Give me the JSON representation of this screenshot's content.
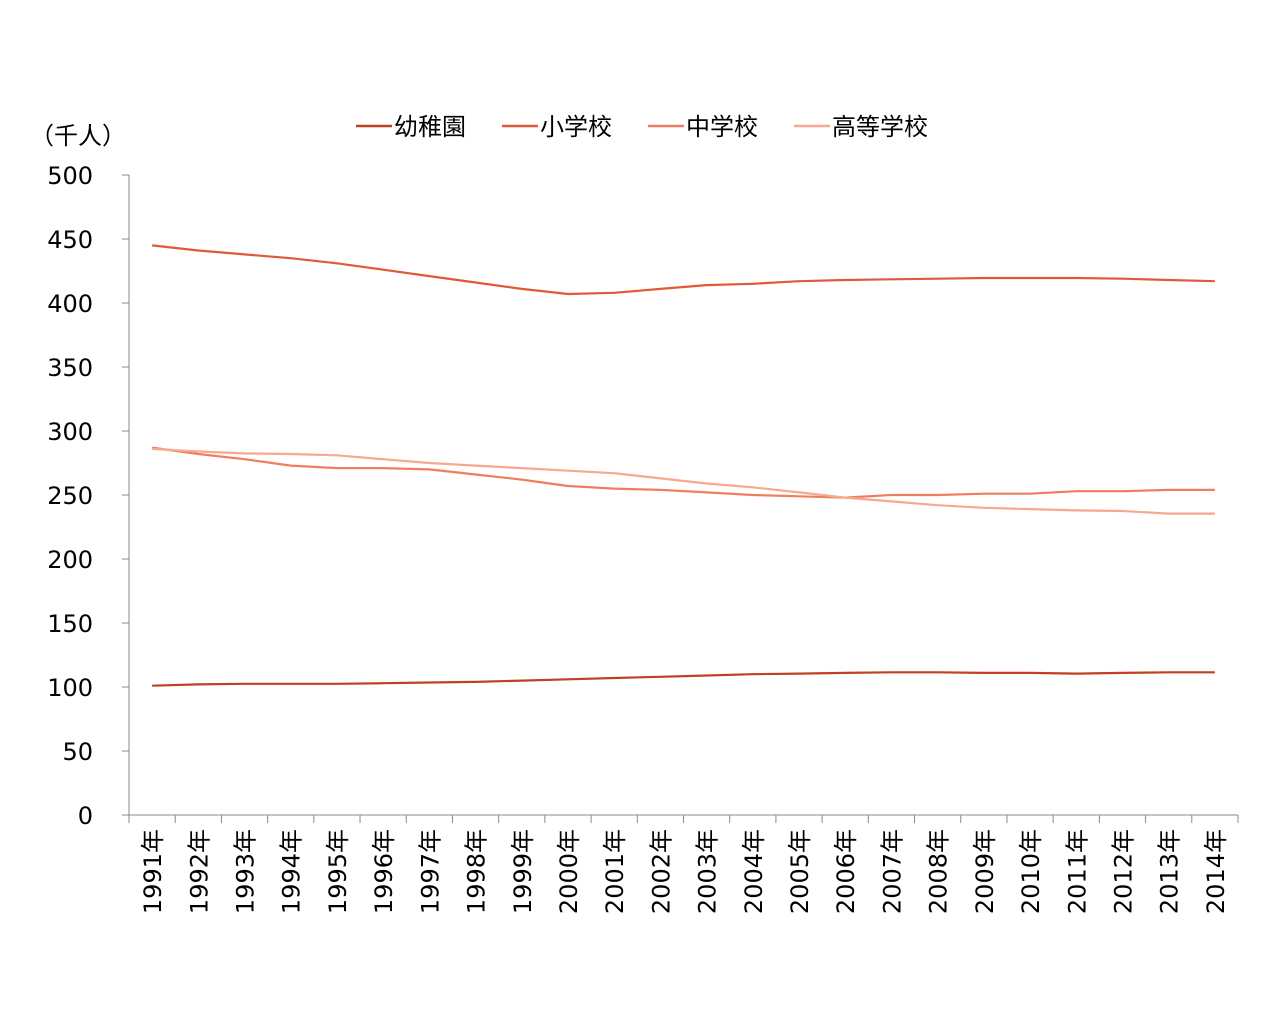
{
  "chart_data": {
    "type": "line",
    "unit_label": "（千人）",
    "categories": [
      "1991年",
      "1992年",
      "1993年",
      "1994年",
      "1995年",
      "1996年",
      "1997年",
      "1998年",
      "1999年",
      "2000年",
      "2001年",
      "2002年",
      "2003年",
      "2004年",
      "2005年",
      "2006年",
      "2007年",
      "2008年",
      "2009年",
      "2010年",
      "2011年",
      "2012年",
      "2013年",
      "2014年"
    ],
    "ylim": [
      0,
      500
    ],
    "yticks": [
      0,
      50,
      100,
      150,
      200,
      250,
      300,
      350,
      400,
      450,
      500
    ],
    "grid": false,
    "legend_position": "top",
    "series": [
      {
        "name": "幼稚園",
        "color": "#c0401f",
        "values": [
          101,
          102,
          102.5,
          102.5,
          102.5,
          103,
          103.5,
          104,
          105,
          106,
          107,
          108,
          109,
          110,
          110.5,
          111,
          111.5,
          111.5,
          111,
          111,
          110.5,
          111,
          111.5,
          111.5
        ]
      },
      {
        "name": "小学校",
        "color": "#e05a3a",
        "values": [
          445,
          441,
          438,
          435,
          431,
          426,
          421,
          416,
          411,
          407,
          408,
          411,
          414,
          415,
          417,
          418,
          418.5,
          419,
          419.5,
          419.5,
          419.5,
          419,
          418,
          417
        ]
      },
      {
        "name": "中学校",
        "color": "#ee7e60",
        "values": [
          287,
          282,
          278,
          273,
          271,
          271,
          270,
          266,
          262,
          257,
          255,
          254,
          252,
          250,
          249,
          248,
          250,
          250,
          251,
          251,
          253,
          253,
          254,
          254
        ]
      },
      {
        "name": "高等学校",
        "color": "#f7a88f",
        "values": [
          286,
          284,
          282.5,
          282,
          281,
          278,
          275,
          273,
          271,
          269,
          267,
          263,
          259,
          256,
          252,
          248,
          245,
          242,
          240,
          239,
          238,
          237.5,
          235.5,
          235.5
        ]
      }
    ]
  }
}
